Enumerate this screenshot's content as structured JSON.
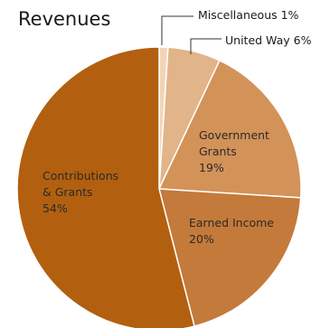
{
  "chart_data": {
    "type": "pie",
    "title": "Revenues",
    "slices": [
      {
        "label": "Miscellaneous",
        "value": 1,
        "color": "#F2D4B8",
        "line1": "Miscellaneous 1%",
        "callout": true
      },
      {
        "label": "United Way",
        "value": 6,
        "color": "#E2B48A",
        "line1": "United Way 6%",
        "callout": true
      },
      {
        "label": "Government Grants",
        "value": 19,
        "color": "#D39258",
        "line1": "Government",
        "line2": "Grants",
        "line3": "19%"
      },
      {
        "label": "Earned Income",
        "value": 20,
        "color": "#C47A3A",
        "line1": "Earned Income",
        "line2": "20%"
      },
      {
        "label": "Contributions & Grants",
        "value": 54,
        "color": "#B2600F",
        "line1": "Contributions",
        "line2": "& Grants",
        "line3": "54%"
      }
    ]
  }
}
